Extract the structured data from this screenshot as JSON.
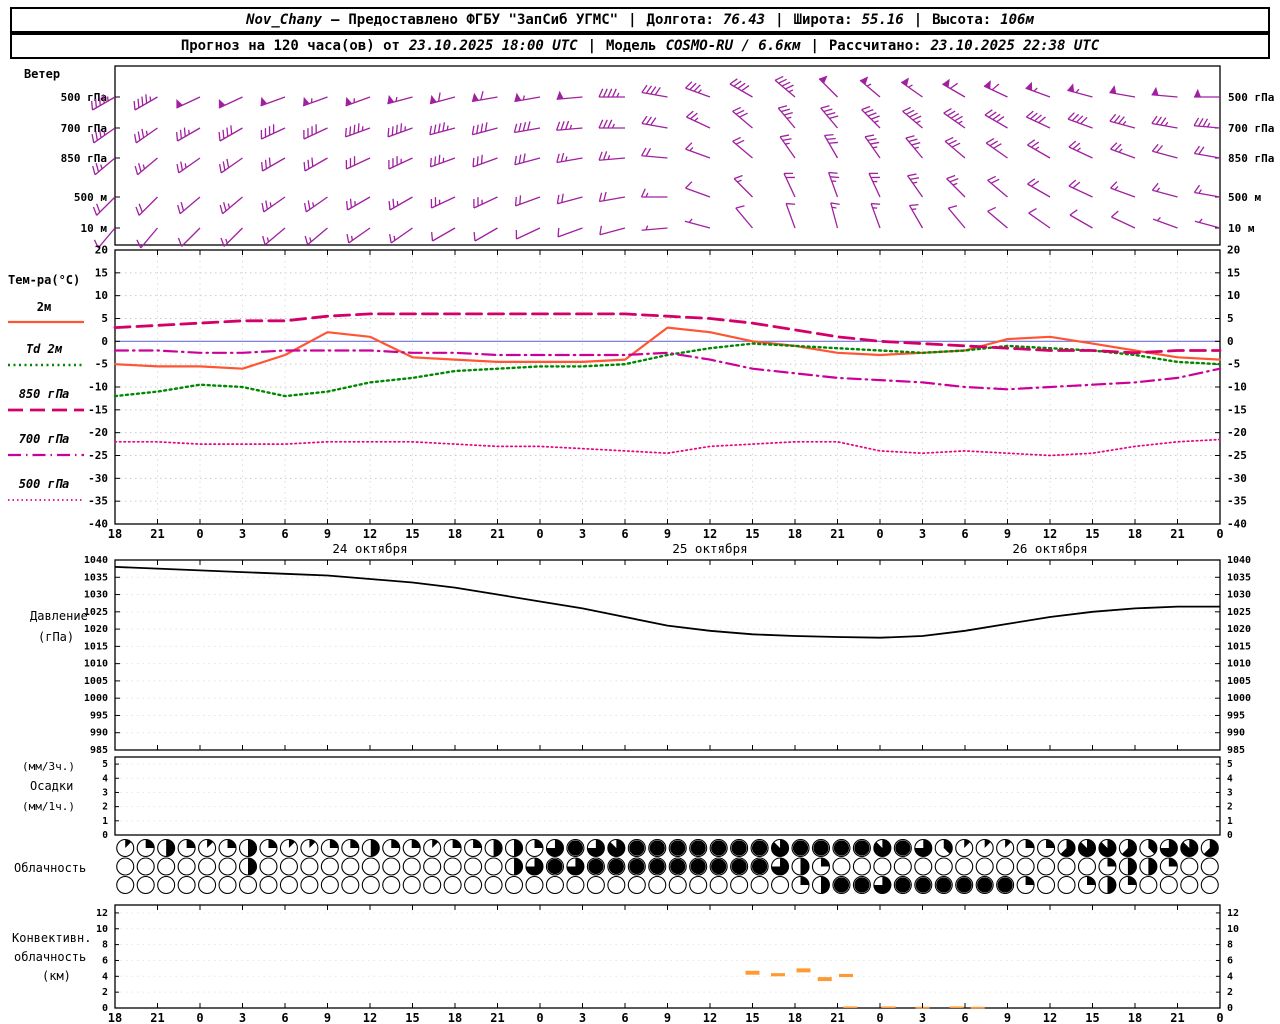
{
  "header1": {
    "station": "Nov_Chany",
    "dash": "–",
    "provider": "Предоставлено ФГБУ \"ЗапСиб УГМС\"",
    "sep": "|",
    "lon_label": "Долгота:",
    "lon": "76.43",
    "lat_label": "Широта:",
    "lat": "55.16",
    "alt_label": "Высота:",
    "alt": "106м"
  },
  "header2": {
    "forecast_label": "Прогноз на 120 часа(ов) от",
    "run_time": "23.10.2025 18:00 UTC",
    "sep": "|",
    "model_label": "Модель",
    "model": "COSMO-RU / 6.6км",
    "calc_label": "Рассчитано:",
    "calc_time": "23.10.2025 22:38 UTC"
  },
  "colors": {
    "wind": "#a020a0",
    "zero_line": "#7070dd",
    "grid": "#c9c9c9",
    "frame": "#000000",
    "convective": "#ff9933"
  },
  "x_axis": {
    "hours": [
      "18",
      "21",
      "0",
      "3",
      "6",
      "9",
      "12",
      "15",
      "18",
      "21",
      "0",
      "3",
      "6",
      "9",
      "12",
      "15",
      "18",
      "21",
      "0",
      "3",
      "6",
      "9",
      "12",
      "15",
      "18",
      "21",
      "0"
    ],
    "dates": [
      "24 октября",
      "25 октября",
      "26 октября"
    ],
    "day_boundaries": [
      2,
      10,
      18,
      26
    ]
  },
  "chart_data": [
    {
      "type": "wind-barbs",
      "title": "Ветер",
      "levels": [
        "500 гПа",
        "700 гПа",
        "850 гПа",
        "500 м",
        "10 м"
      ],
      "barbs": [
        {
          "level": "500 гПа",
          "dir": [
            240,
            240,
            245,
            245,
            250,
            250,
            250,
            255,
            255,
            260,
            260,
            265,
            270,
            280,
            290,
            300,
            310,
            315,
            310,
            305,
            300,
            295,
            290,
            285,
            280,
            275,
            270
          ],
          "speed_kt": [
            45,
            45,
            50,
            50,
            50,
            55,
            55,
            55,
            60,
            60,
            55,
            50,
            45,
            40,
            35,
            40,
            45,
            50,
            55,
            55,
            60,
            60,
            55,
            55,
            50,
            50,
            50
          ]
        },
        {
          "level": "700 гПа",
          "dir": [
            235,
            235,
            240,
            240,
            245,
            245,
            250,
            250,
            255,
            255,
            260,
            265,
            270,
            280,
            295,
            310,
            320,
            320,
            315,
            310,
            305,
            300,
            295,
            290,
            285,
            280,
            275
          ],
          "speed_kt": [
            35,
            35,
            35,
            40,
            40,
            40,
            45,
            45,
            45,
            40,
            40,
            35,
            35,
            30,
            25,
            30,
            35,
            40,
            45,
            45,
            45,
            40,
            40,
            40,
            35,
            35,
            35
          ]
        },
        {
          "level": "850 гПа",
          "dir": [
            230,
            230,
            235,
            235,
            240,
            240,
            245,
            245,
            250,
            250,
            255,
            260,
            265,
            275,
            290,
            310,
            325,
            330,
            325,
            320,
            310,
            305,
            300,
            295,
            290,
            285,
            280
          ],
          "speed_kt": [
            25,
            25,
            25,
            30,
            30,
            30,
            30,
            35,
            35,
            30,
            30,
            25,
            25,
            20,
            15,
            20,
            25,
            30,
            35,
            35,
            30,
            30,
            25,
            25,
            25,
            20,
            20
          ]
        },
        {
          "level": "500 м",
          "dir": [
            225,
            225,
            230,
            230,
            235,
            235,
            240,
            240,
            245,
            245,
            250,
            255,
            260,
            270,
            290,
            315,
            335,
            340,
            335,
            325,
            315,
            310,
            300,
            295,
            290,
            285,
            280
          ],
          "speed_kt": [
            20,
            20,
            20,
            25,
            25,
            25,
            25,
            25,
            25,
            25,
            20,
            20,
            20,
            15,
            10,
            15,
            20,
            25,
            25,
            25,
            25,
            20,
            20,
            20,
            15,
            15,
            15
          ]
        },
        {
          "level": "10 м",
          "dir": [
            220,
            220,
            225,
            225,
            230,
            230,
            235,
            235,
            240,
            240,
            245,
            250,
            255,
            265,
            285,
            320,
            340,
            345,
            340,
            330,
            320,
            310,
            305,
            300,
            295,
            290,
            285
          ],
          "speed_kt": [
            10,
            10,
            10,
            15,
            15,
            15,
            15,
            15,
            10,
            10,
            10,
            10,
            10,
            5,
            5,
            10,
            10,
            15,
            15,
            15,
            10,
            10,
            10,
            10,
            10,
            5,
            5
          ]
        }
      ]
    },
    {
      "type": "line",
      "title": "Тем-ра(°C)",
      "ylim": [
        -40,
        20
      ],
      "yticks": [
        20,
        15,
        10,
        5,
        0,
        -5,
        -10,
        -15,
        -20,
        -25,
        -30,
        -35,
        -40
      ],
      "series": [
        {
          "name": "2м",
          "color": "#ff5533",
          "style": "solid",
          "values": [
            -5,
            -5.5,
            -5.5,
            -6,
            -3,
            2,
            1,
            -3.5,
            -4,
            -4.5,
            -4.5,
            -4.5,
            -4,
            3,
            2,
            0,
            -1,
            -2.5,
            -3,
            -2.5,
            -2,
            0.5,
            1,
            -0.5,
            -2,
            -3.5,
            -4
          ]
        },
        {
          "name": "Td 2м",
          "color": "#008800",
          "style": "dotted",
          "values": [
            -12,
            -11,
            -9.5,
            -10,
            -12,
            -11,
            -9,
            -8,
            -6.5,
            -6,
            -5.5,
            -5.5,
            -5,
            -3,
            -1.5,
            -0.5,
            -1,
            -1.5,
            -2,
            -2.5,
            -2,
            -1,
            -1.5,
            -2,
            -3,
            -4.5,
            -5
          ]
        },
        {
          "name": "850 гПа",
          "color": "#d4006a",
          "style": "dashed",
          "values": [
            3,
            3.5,
            4,
            4.5,
            4.5,
            5.5,
            6,
            6,
            6,
            6,
            6,
            6,
            6,
            5.5,
            5,
            4,
            2.5,
            1,
            0,
            -0.5,
            -1,
            -1.5,
            -2,
            -2,
            -2.5,
            -2,
            -2
          ]
        },
        {
          "name": "700 гПа",
          "color": "#cc0099",
          "style": "dashdot",
          "values": [
            -2,
            -2,
            -2.5,
            -2.5,
            -2,
            -2,
            -2,
            -2.5,
            -2.5,
            -3,
            -3,
            -3,
            -3,
            -2.5,
            -4,
            -6,
            -7,
            -8,
            -8.5,
            -9,
            -10,
            -10.5,
            -10,
            -9.5,
            -9,
            -8,
            -6
          ]
        },
        {
          "name": "500 гПа",
          "color": "#e8007e",
          "style": "fine-dotted",
          "values": [
            -22,
            -22,
            -22.5,
            -22.5,
            -22.5,
            -22,
            -22,
            -22,
            -22.5,
            -23,
            -23,
            -23.5,
            -24,
            -24.5,
            -23,
            -22.5,
            -22,
            -22,
            -24,
            -24.5,
            -24,
            -24.5,
            -25,
            -24.5,
            -23,
            -22,
            -21.5
          ]
        }
      ]
    },
    {
      "type": "line",
      "title": "Давление (гПа)",
      "labels": [
        "Давление",
        "(гПа)"
      ],
      "ylim": [
        985,
        1040
      ],
      "yticks": [
        1040,
        1035,
        1030,
        1025,
        1020,
        1015,
        1010,
        1005,
        1000,
        995,
        990,
        985
      ],
      "series": [
        {
          "name": "Давление",
          "color": "#000000",
          "style": "solid",
          "values": [
            1038,
            1037.5,
            1037,
            1036.5,
            1036,
            1035.5,
            1034.5,
            1033.5,
            1032,
            1030,
            1028,
            1026,
            1023.5,
            1021,
            1019.5,
            1018.5,
            1018,
            1017.7,
            1017.5,
            1018,
            1019.5,
            1021.5,
            1023.5,
            1025,
            1026,
            1026.5,
            1026.5
          ]
        }
      ]
    },
    {
      "type": "bar",
      "title": "Осадки",
      "labels": [
        "(мм/3ч.)",
        "Осадки",
        "(мм/1ч.)"
      ],
      "ylim": [
        0,
        5.5
      ],
      "yticks": [
        5,
        4,
        3,
        2,
        1,
        0
      ],
      "values": [
        0,
        0,
        0,
        0,
        0,
        0,
        0,
        0,
        0,
        0,
        0,
        0,
        0,
        0,
        0,
        0,
        0,
        0,
        0,
        0,
        0,
        0,
        0,
        0,
        0,
        0,
        0
      ]
    },
    {
      "type": "cloud-cover",
      "title": "Облачность",
      "units": "okta (0=ясно, 8=сплошная)",
      "rows": [
        [
          1,
          2,
          4,
          2,
          1,
          2,
          4,
          2,
          1,
          1,
          2,
          2,
          4,
          2,
          2,
          1,
          2,
          2,
          4,
          4,
          2,
          6,
          8,
          6,
          7,
          8,
          8,
          8,
          8,
          8,
          8,
          8,
          7,
          8,
          8,
          8,
          8,
          7,
          8,
          6,
          3,
          1,
          1,
          1,
          2,
          2,
          5,
          7,
          7,
          5,
          3,
          6,
          7,
          5
        ],
        [
          0,
          0,
          0,
          0,
          0,
          0,
          4,
          0,
          0,
          0,
          0,
          0,
          0,
          0,
          0,
          0,
          0,
          0,
          0,
          4,
          6,
          8,
          6,
          8,
          8,
          8,
          8,
          8,
          8,
          8,
          8,
          8,
          6,
          4,
          2,
          0,
          0,
          0,
          0,
          0,
          0,
          0,
          0,
          0,
          0,
          0,
          0,
          0,
          2,
          4,
          4,
          2,
          0,
          0
        ],
        [
          0,
          0,
          0,
          0,
          0,
          0,
          0,
          0,
          0,
          0,
          0,
          0,
          0,
          0,
          0,
          0,
          0,
          0,
          0,
          0,
          0,
          0,
          0,
          0,
          0,
          0,
          0,
          0,
          0,
          0,
          0,
          0,
          0,
          2,
          4,
          8,
          8,
          6,
          8,
          8,
          8,
          8,
          8,
          8,
          2,
          0,
          0,
          2,
          4,
          2,
          0,
          0,
          0,
          0
        ]
      ]
    },
    {
      "type": "segments",
      "title": "Конвективн. облачность (км)",
      "labels": [
        "Конвективн.",
        "облачность",
        "(км)"
      ],
      "ylim": [
        0,
        13
      ],
      "yticks": [
        12,
        10,
        8,
        6,
        4,
        2,
        0
      ],
      "color": "#ff9933",
      "bars": [
        {
          "x": 15.0,
          "base": 4.2,
          "top": 4.7
        },
        {
          "x": 15.6,
          "base": 4.0,
          "top": 4.4
        },
        {
          "x": 16.2,
          "base": 4.5,
          "top": 5.0
        },
        {
          "x": 16.7,
          "base": 3.4,
          "top": 3.9
        },
        {
          "x": 17.2,
          "base": 3.9,
          "top": 4.3
        },
        {
          "x": 17.3,
          "base": 0,
          "top": 0.2
        },
        {
          "x": 18.2,
          "base": 0,
          "top": 0.2
        },
        {
          "x": 19.0,
          "base": 0,
          "top": 0.15
        },
        {
          "x": 19.8,
          "base": 0,
          "top": 0.2
        },
        {
          "x": 20.3,
          "base": 0,
          "top": 0.15
        }
      ]
    }
  ]
}
